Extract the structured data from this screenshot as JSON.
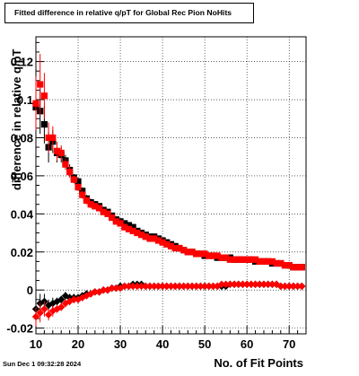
{
  "timestamp": "Sun Dec  1 09:32:28 2024",
  "chart_data": {
    "type": "scatter",
    "title": "Fitted difference in relative q/pT for Global Rec Pion NoHits",
    "xlabel": "No. of Fit Points",
    "ylabel": "difference in relative q/pT",
    "xlim": [
      10,
      74
    ],
    "ylim": [
      -0.023,
      0.133
    ],
    "xticks": [
      10,
      20,
      30,
      40,
      50,
      60,
      70
    ],
    "xtick_labels": [
      "10",
      "20",
      "30",
      "40",
      "50",
      "60",
      "70"
    ],
    "yticks": [
      -0.02,
      0,
      0.02,
      0.04,
      0.06,
      0.08,
      0.1,
      0.12
    ],
    "ytick_labels": [
      "-0.02",
      "0",
      "0.02",
      "0.04",
      "0.06",
      "0.08",
      "0.1",
      "0.12"
    ],
    "grid": true,
    "x": [
      10,
      11,
      12,
      13,
      14,
      15,
      16,
      17,
      18,
      19,
      20,
      21,
      22,
      23,
      24,
      25,
      26,
      27,
      28,
      29,
      30,
      31,
      32,
      33,
      34,
      35,
      36,
      37,
      38,
      39,
      40,
      41,
      42,
      43,
      44,
      45,
      46,
      47,
      48,
      49,
      50,
      51,
      52,
      53,
      54,
      55,
      56,
      57,
      58,
      59,
      60,
      61,
      62,
      63,
      64,
      65,
      66,
      67,
      68,
      69,
      70,
      71,
      72,
      73
    ],
    "series": [
      {
        "color": "#000000",
        "marker": "square",
        "values": [
          0.096,
          0.094,
          0.087,
          0.075,
          0.078,
          0.072,
          0.071,
          0.068,
          0.063,
          0.059,
          0.057,
          0.052,
          0.048,
          0.046,
          0.045,
          0.044,
          0.042,
          0.041,
          0.039,
          0.037,
          0.036,
          0.035,
          0.034,
          0.033,
          0.031,
          0.03,
          0.029,
          0.028,
          0.028,
          0.027,
          0.026,
          0.025,
          0.024,
          0.023,
          0.022,
          0.021,
          0.02,
          0.02,
          0.019,
          0.019,
          0.018,
          0.018,
          0.018,
          0.017,
          0.017,
          0.017,
          0.017,
          0.016,
          0.016,
          0.016,
          0.016,
          0.016,
          0.015,
          0.015,
          0.015,
          0.015,
          0.014,
          0.014,
          0.014,
          0.013,
          0.013,
          0.012,
          0.012,
          0.012
        ],
        "errors": [
          0.012,
          0.012,
          0.01,
          0.008,
          0.006,
          0.005,
          0.004,
          0.003,
          0.003,
          0.002,
          0.002,
          0.002,
          0.002,
          0.002,
          0.001,
          0.001,
          0.001,
          0.001,
          0.001,
          0.001,
          0.001,
          0.001,
          0.001,
          0.001,
          0.001,
          0.001,
          0.001,
          0.001,
          0.001,
          0.001,
          0.001,
          0.001,
          0.001,
          0.001,
          0.001,
          0.001,
          0.001,
          0.001,
          0.001,
          0.001,
          0.001,
          0.001,
          0.001,
          0.001,
          0.001,
          0.001,
          0.001,
          0.001,
          0.001,
          0.001,
          0.001,
          0.001,
          0.001,
          0.001,
          0.001,
          0.001,
          0.001,
          0.001,
          0.001,
          0.001,
          0.001,
          0.001,
          0.001,
          0.001
        ]
      },
      {
        "color": "#ff0000",
        "marker": "square",
        "values": [
          0.098,
          0.108,
          0.102,
          0.08,
          0.08,
          0.073,
          0.072,
          0.066,
          0.062,
          0.058,
          0.054,
          0.05,
          0.047,
          0.045,
          0.044,
          0.043,
          0.041,
          0.04,
          0.038,
          0.036,
          0.035,
          0.033,
          0.032,
          0.031,
          0.03,
          0.029,
          0.028,
          0.027,
          0.027,
          0.026,
          0.025,
          0.024,
          0.023,
          0.022,
          0.022,
          0.021,
          0.02,
          0.02,
          0.019,
          0.019,
          0.019,
          0.018,
          0.018,
          0.018,
          0.017,
          0.017,
          0.016,
          0.016,
          0.016,
          0.016,
          0.016,
          0.016,
          0.016,
          0.015,
          0.015,
          0.015,
          0.015,
          0.014,
          0.014,
          0.013,
          0.013,
          0.012,
          0.012,
          0.012
        ],
        "errors": [
          0.014,
          0.016,
          0.012,
          0.008,
          0.006,
          0.005,
          0.004,
          0.003,
          0.003,
          0.002,
          0.002,
          0.002,
          0.002,
          0.002,
          0.001,
          0.001,
          0.001,
          0.001,
          0.001,
          0.001,
          0.001,
          0.001,
          0.001,
          0.001,
          0.001,
          0.001,
          0.001,
          0.001,
          0.001,
          0.001,
          0.001,
          0.001,
          0.001,
          0.001,
          0.001,
          0.001,
          0.001,
          0.001,
          0.001,
          0.001,
          0.001,
          0.001,
          0.001,
          0.001,
          0.001,
          0.001,
          0.001,
          0.001,
          0.001,
          0.001,
          0.001,
          0.001,
          0.001,
          0.001,
          0.001,
          0.001,
          0.001,
          0.001,
          0.001,
          0.001,
          0.001,
          0.001,
          0.001,
          0.001
        ]
      },
      {
        "color": "#000000",
        "marker": "diamond",
        "values": [
          -0.01,
          -0.007,
          -0.006,
          -0.008,
          -0.007,
          -0.006,
          -0.005,
          -0.003,
          -0.004,
          -0.004,
          -0.004,
          -0.003,
          -0.002,
          -0.002,
          -0.001,
          -0.001,
          0.0,
          0.0,
          0.001,
          0.001,
          0.002,
          0.002,
          0.002,
          0.003,
          0.003,
          0.003,
          0.002,
          0.002,
          0.002,
          0.002,
          0.002,
          0.002,
          0.002,
          0.002,
          0.002,
          0.002,
          0.002,
          0.002,
          0.002,
          0.002,
          0.002,
          0.002,
          0.002,
          0.002,
          0.002,
          0.002,
          0.003,
          0.003,
          0.003,
          0.003,
          0.003,
          0.003,
          0.003,
          0.003,
          0.003,
          0.003,
          0.003,
          0.003,
          0.002,
          0.002,
          0.002,
          0.002,
          0.002,
          0.002
        ],
        "errors": [
          0.005,
          0.005,
          0.004,
          0.003,
          0.003,
          0.002,
          0.002,
          0.002,
          0.002,
          0.002,
          0.001,
          0.001,
          0.001,
          0.001,
          0.001,
          0.001,
          0.001,
          0.001,
          0.001,
          0.001,
          0.001,
          0.001,
          0.001,
          0.001,
          0.001,
          0.001,
          0.001,
          0.001,
          0.001,
          0.001,
          0.001,
          0.001,
          0.001,
          0.001,
          0.001,
          0.001,
          0.001,
          0.001,
          0.001,
          0.001,
          0.001,
          0.001,
          0.001,
          0.001,
          0.001,
          0.001,
          0.001,
          0.001,
          0.001,
          0.001,
          0.001,
          0.001,
          0.001,
          0.001,
          0.001,
          0.001,
          0.001,
          0.001,
          0.001,
          0.001,
          0.001,
          0.001,
          0.001,
          0.001
        ]
      },
      {
        "color": "#ff0000",
        "marker": "diamond",
        "values": [
          -0.014,
          -0.012,
          -0.01,
          -0.013,
          -0.011,
          -0.01,
          -0.009,
          -0.007,
          -0.006,
          -0.005,
          -0.005,
          -0.004,
          -0.003,
          -0.002,
          -0.001,
          -0.001,
          0.0,
          0.0,
          0.001,
          0.001,
          0.001,
          0.002,
          0.002,
          0.002,
          0.002,
          0.002,
          0.002,
          0.002,
          0.002,
          0.002,
          0.002,
          0.002,
          0.002,
          0.002,
          0.002,
          0.002,
          0.002,
          0.002,
          0.002,
          0.002,
          0.002,
          0.002,
          0.002,
          0.002,
          0.003,
          0.003,
          0.003,
          0.003,
          0.003,
          0.003,
          0.003,
          0.003,
          0.003,
          0.003,
          0.003,
          0.003,
          0.003,
          0.003,
          0.002,
          0.002,
          0.002,
          0.002,
          0.002,
          0.002
        ],
        "errors": [
          0.005,
          0.005,
          0.004,
          0.003,
          0.003,
          0.002,
          0.002,
          0.002,
          0.002,
          0.002,
          0.001,
          0.001,
          0.001,
          0.001,
          0.001,
          0.001,
          0.001,
          0.001,
          0.001,
          0.001,
          0.001,
          0.001,
          0.001,
          0.001,
          0.001,
          0.001,
          0.001,
          0.001,
          0.001,
          0.001,
          0.001,
          0.001,
          0.001,
          0.001,
          0.001,
          0.001,
          0.001,
          0.001,
          0.001,
          0.001,
          0.001,
          0.001,
          0.001,
          0.001,
          0.001,
          0.001,
          0.001,
          0.001,
          0.001,
          0.001,
          0.001,
          0.001,
          0.001,
          0.001,
          0.001,
          0.001,
          0.001,
          0.001,
          0.001,
          0.001,
          0.001,
          0.001,
          0.001,
          0.001
        ]
      }
    ]
  }
}
